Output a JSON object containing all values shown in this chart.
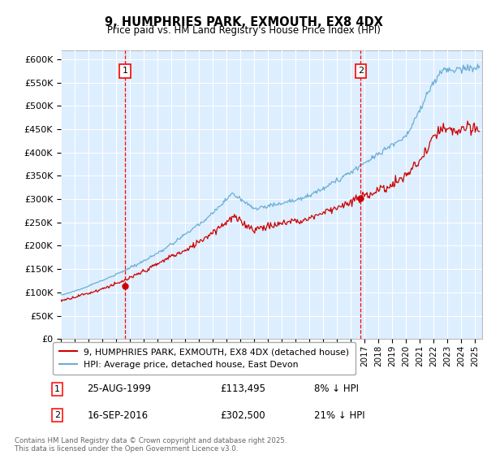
{
  "title": "9, HUMPHRIES PARK, EXMOUTH, EX8 4DX",
  "subtitle": "Price paid vs. HM Land Registry's House Price Index (HPI)",
  "ylabel_ticks": [
    "£0",
    "£50K",
    "£100K",
    "£150K",
    "£200K",
    "£250K",
    "£300K",
    "£350K",
    "£400K",
    "£450K",
    "£500K",
    "£550K",
    "£600K"
  ],
  "ylim": [
    0,
    620000
  ],
  "xlim_start": 1995.0,
  "xlim_end": 2025.5,
  "sale1_date": "25-AUG-1999",
  "sale1_price": 113495,
  "sale1_x": 1999.65,
  "sale2_date": "16-SEP-2016",
  "sale2_price": 302500,
  "sale2_x": 2016.71,
  "hpi_label": "HPI: Average price, detached house, East Devon",
  "prop_label": "9, HUMPHRIES PARK, EXMOUTH, EX8 4DX (detached house)",
  "hpi_color": "#6baed6",
  "prop_color": "#cc0000",
  "bg_color": "#ddeeff",
  "grid_color": "#ffffff",
  "footer": "Contains HM Land Registry data © Crown copyright and database right 2025.\nThis data is licensed under the Open Government Licence v3.0."
}
